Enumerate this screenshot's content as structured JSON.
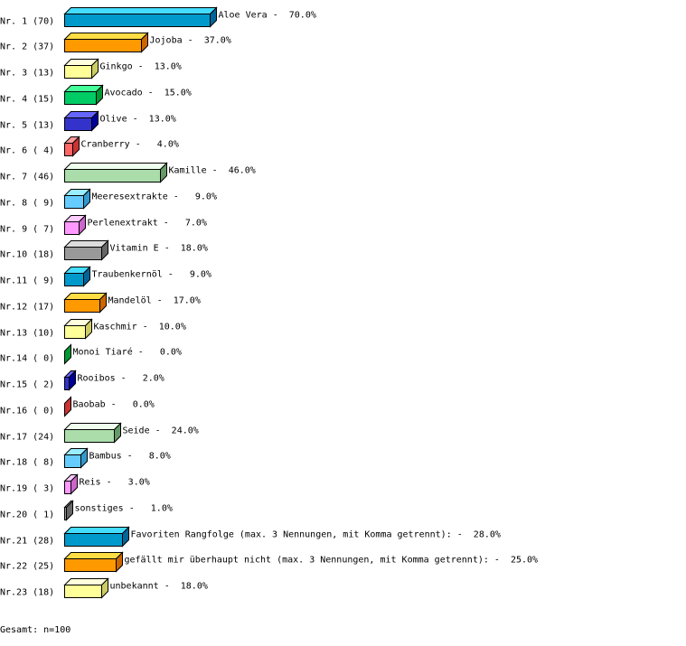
{
  "chart_data": {
    "type": "bar",
    "orientation": "horizontal",
    "style": "3d",
    "rows": [
      {
        "rank": "Nr. 1 (70)",
        "name": "Aloe Vera",
        "value": 70.0,
        "label": "Aloe Vera -  70.0%"
      },
      {
        "rank": "Nr. 2 (37)",
        "name": "Jojoba",
        "value": 37.0,
        "label": "Jojoba -  37.0%"
      },
      {
        "rank": "Nr. 3 (13)",
        "name": "Ginkgo",
        "value": 13.0,
        "label": "Ginkgo -  13.0%"
      },
      {
        "rank": "Nr. 4 (15)",
        "name": "Avocado",
        "value": 15.0,
        "label": "Avocado -  15.0%"
      },
      {
        "rank": "Nr. 5 (13)",
        "name": "Olive",
        "value": 13.0,
        "label": "Olive -  13.0%"
      },
      {
        "rank": "Nr. 6 ( 4)",
        "name": "Cranberry",
        "value": 4.0,
        "label": "Cranberry -   4.0%"
      },
      {
        "rank": "Nr. 7 (46)",
        "name": "Kamille",
        "value": 46.0,
        "label": "Kamille -  46.0%"
      },
      {
        "rank": "Nr. 8 ( 9)",
        "name": "Meeresextrakte",
        "value": 9.0,
        "label": "Meeresextrakte -   9.0%"
      },
      {
        "rank": "Nr. 9 ( 7)",
        "name": "Perlenextrakt",
        "value": 7.0,
        "label": "Perlenextrakt -   7.0%"
      },
      {
        "rank": "Nr.10 (18)",
        "name": "Vitamin E",
        "value": 18.0,
        "label": "Vitamin E -  18.0%"
      },
      {
        "rank": "Nr.11 ( 9)",
        "name": "Traubenkernöl",
        "value": 9.0,
        "label": "Traubenkernöl -   9.0%"
      },
      {
        "rank": "Nr.12 (17)",
        "name": "Mandelöl",
        "value": 17.0,
        "label": "Mandelöl -  17.0%"
      },
      {
        "rank": "Nr.13 (10)",
        "name": "Kaschmir",
        "value": 10.0,
        "label": "Kaschmir -  10.0%"
      },
      {
        "rank": "Nr.14 ( 0)",
        "name": "Monoi Tiaré",
        "value": 0.0,
        "label": "Monoi Tiaré -   0.0%"
      },
      {
        "rank": "Nr.15 ( 2)",
        "name": "Rooibos",
        "value": 2.0,
        "label": "Rooibos -   2.0%"
      },
      {
        "rank": "Nr.16 ( 0)",
        "name": "Baobab",
        "value": 0.0,
        "label": "Baobab -   0.0%"
      },
      {
        "rank": "Nr.17 (24)",
        "name": "Seide",
        "value": 24.0,
        "label": "Seide -  24.0%"
      },
      {
        "rank": "Nr.18 ( 8)",
        "name": "Bambus",
        "value": 8.0,
        "label": "Bambus -   8.0%"
      },
      {
        "rank": "Nr.19 ( 3)",
        "name": "Reis",
        "value": 3.0,
        "label": "Reis -   3.0%"
      },
      {
        "rank": "Nr.20 ( 1)",
        "name": "sonstiges",
        "value": 1.0,
        "label": "sonstiges -   1.0%"
      },
      {
        "rank": "Nr.21 (28)",
        "name": "Favoriten Rangfolge (max. 3 Nennungen, mit Komma getrennt):",
        "value": 28.0,
        "label": "Favoriten Rangfolge (max. 3 Nennungen, mit Komma getrennt): -  28.0%"
      },
      {
        "rank": "Nr.22 (25)",
        "name": "gefällt mir überhaupt nicht (max. 3 Nennungen, mit Komma getrennt):",
        "value": 25.0,
        "label": "gefällt mir überhaupt nicht (max. 3 Nennungen, mit Komma getrennt): -  25.0%"
      },
      {
        "rank": "Nr.23 (18)",
        "name": "unbekannt",
        "value": 18.0,
        "label": "unbekannt -  18.0%"
      }
    ],
    "palette": [
      {
        "front": "#0099cc",
        "top": "#44ddff",
        "side": "#006699"
      },
      {
        "front": "#ff9900",
        "top": "#ffdd44",
        "side": "#cc6600"
      },
      {
        "front": "#ffff99",
        "top": "#ffffdd",
        "side": "#cccc66"
      },
      {
        "front": "#00cc66",
        "top": "#44ff99",
        "side": "#009933"
      },
      {
        "front": "#3333cc",
        "top": "#6666ff",
        "side": "#000099"
      },
      {
        "front": "#ff6666",
        "top": "#ff9999",
        "side": "#cc3333"
      },
      {
        "front": "#aaddaa",
        "top": "#eeffee",
        "side": "#669966"
      },
      {
        "front": "#66ccff",
        "top": "#99eeff",
        "side": "#3399cc"
      },
      {
        "front": "#ff99ff",
        "top": "#ffccff",
        "side": "#cc66cc"
      },
      {
        "front": "#999999",
        "top": "#dddddd",
        "side": "#666666"
      }
    ],
    "xlim": [
      0,
      100
    ]
  },
  "total": "Gesamt: n=100"
}
